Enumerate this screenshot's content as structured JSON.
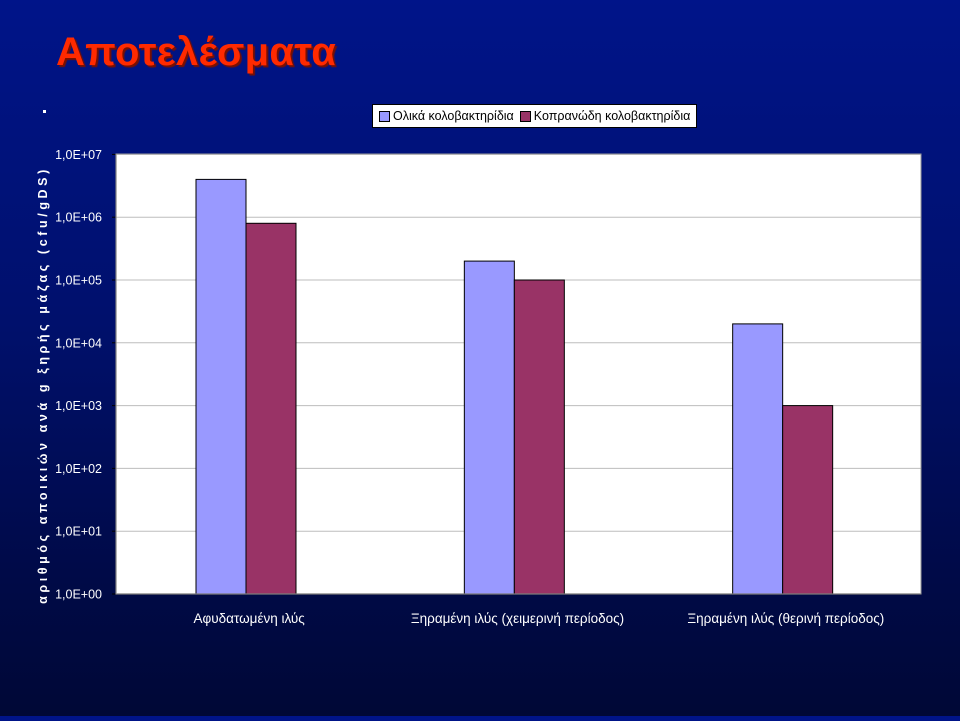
{
  "slide": {
    "title": "Αποτελέσματα"
  },
  "chart_data": {
    "type": "bar",
    "title": "",
    "xlabel": "",
    "ylabel": "αριθμός αποικιών ανά g ξηρής μάζας (cfu/gDS)",
    "yscale": "log",
    "ylim": [
      1,
      10000000
    ],
    "y_tick_labels": [
      "1,0E+00",
      "1,0E+01",
      "1,0E+02",
      "1,0E+03",
      "1,0E+04",
      "1,0E+05",
      "1,0E+06",
      "1,0E+07"
    ],
    "categories": [
      "Αφυδατωμένη ιλύς",
      "Ξηραμένη ιλύς (χειμερινή περίοδος)",
      "Ξηραμένη ιλύς (θερινή περίοδος)"
    ],
    "series": [
      {
        "name": "Ολικά κολοβακτηρίδια",
        "color": "#9999ff",
        "values": [
          4000000,
          200000,
          20000
        ]
      },
      {
        "name": "Κοπρανώδη κολοβακτηρίδια",
        "color": "#993366",
        "values": [
          800000,
          100000,
          1000
        ]
      }
    ],
    "grid": true,
    "legend_position": "top-right"
  }
}
